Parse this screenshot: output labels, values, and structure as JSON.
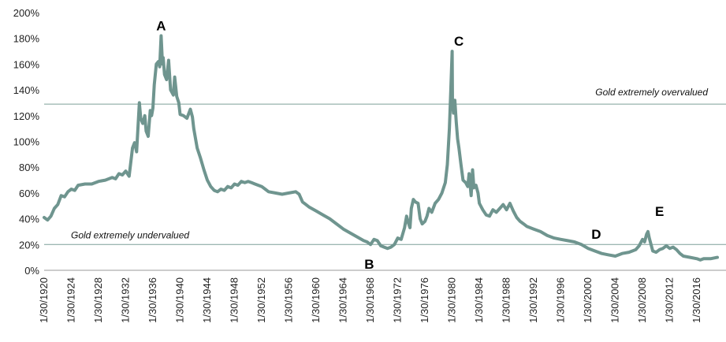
{
  "chart_data": {
    "type": "line",
    "title": "",
    "xlabel": "",
    "ylabel": "",
    "ylim": [
      0,
      200
    ],
    "y_unit": "%",
    "grid": false,
    "line_color": "#6f958f",
    "reference_color": "#7d9f99",
    "y_ticks": [
      "0%",
      "20%",
      "40%",
      "60%",
      "80%",
      "100%",
      "120%",
      "140%",
      "160%",
      "180%",
      "200%"
    ],
    "x_ticks": [
      "1/30/1920",
      "1/30/1924",
      "1/30/1928",
      "1/30/1932",
      "1/30/1936",
      "1/30/1940",
      "1/30/1944",
      "1/30/1948",
      "1/30/1952",
      "1/30/1956",
      "1/30/1960",
      "1/30/1964",
      "1/30/1968",
      "1/30/1972",
      "1/30/1976",
      "1/30/1980",
      "1/30/1984",
      "1/30/1988",
      "1/30/1992",
      "1/30/1996",
      "1/30/2000",
      "1/30/2004",
      "1/30/2008",
      "1/30/2012",
      "1/30/2016"
    ],
    "x_range": [
      1920,
      2019
    ],
    "reference_lines": [
      {
        "value": 129,
        "label": "Gold extremely overvalued"
      },
      {
        "value": 20,
        "label": "Gold extremely undervalued"
      }
    ],
    "point_labels": [
      {
        "text": "A",
        "x": 1937.2,
        "y": 190
      },
      {
        "text": "B",
        "x": 1967.8,
        "y": 5
      },
      {
        "text": "C",
        "x": 1981.0,
        "y": 178
      },
      {
        "text": "D",
        "x": 2001.2,
        "y": 28
      },
      {
        "text": "E",
        "x": 2010.5,
        "y": 46
      }
    ],
    "series": [
      {
        "x": [
          1920.0,
          1920.5,
          1921.0,
          1921.5,
          1922.0,
          1922.5,
          1923.0,
          1923.5,
          1924.0,
          1924.5,
          1925.0,
          1926.0,
          1927.0,
          1928.0,
          1929.0,
          1930.0,
          1930.5,
          1931.0,
          1931.5,
          1932.0,
          1932.5,
          1933.0,
          1933.3,
          1933.6,
          1934.0,
          1934.2,
          1934.5,
          1934.8,
          1935.0,
          1935.3,
          1935.6,
          1935.8,
          1936.0,
          1936.2,
          1936.5,
          1936.8,
          1937.0,
          1937.2,
          1937.4,
          1937.5,
          1937.7,
          1938.0,
          1938.3,
          1938.6,
          1939.0,
          1939.2,
          1939.5,
          1939.8,
          1940.0,
          1940.5,
          1941.0,
          1941.5,
          1941.8,
          1942.0,
          1942.5,
          1943.0,
          1943.5,
          1944.0,
          1944.5,
          1945.0,
          1945.5,
          1946.0,
          1946.5,
          1947.0,
          1947.5,
          1948.0,
          1948.5,
          1949.0,
          1949.5,
          1950.0,
          1950.5,
          1951.0,
          1951.5,
          1952.0,
          1952.5,
          1953.0,
          1954.0,
          1955.0,
          1956.0,
          1957.0,
          1957.5,
          1958.0,
          1958.5,
          1959.0,
          1960.0,
          1961.0,
          1962.0,
          1963.0,
          1964.0,
          1965.0,
          1966.0,
          1967.0,
          1967.5,
          1968.0,
          1968.5,
          1969.0,
          1969.5,
          1970.0,
          1970.5,
          1971.0,
          1971.5,
          1972.0,
          1972.5,
          1973.0,
          1973.3,
          1973.5,
          1973.8,
          1974.0,
          1974.3,
          1974.6,
          1975.0,
          1975.3,
          1975.6,
          1976.0,
          1976.3,
          1976.6,
          1977.0,
          1977.5,
          1978.0,
          1978.5,
          1979.0,
          1979.3,
          1979.6,
          1979.8,
          1980.0,
          1980.05,
          1980.2,
          1980.4,
          1980.6,
          1980.8,
          1981.0,
          1981.3,
          1981.6,
          1982.0,
          1982.3,
          1982.5,
          1982.8,
          1983.0,
          1983.2,
          1983.5,
          1983.8,
          1984.0,
          1984.5,
          1985.0,
          1985.5,
          1986.0,
          1986.5,
          1987.0,
          1987.5,
          1988.0,
          1988.5,
          1989.0,
          1989.5,
          1990.0,
          1990.5,
          1991.0,
          1992.0,
          1993.0,
          1994.0,
          1995.0,
          1996.0,
          1997.0,
          1998.0,
          1999.0,
          2000.0,
          2001.0,
          2002.0,
          2003.0,
          2004.0,
          2005.0,
          2006.0,
          2006.5,
          2007.0,
          2007.5,
          2008.0,
          2008.3,
          2008.6,
          2008.8,
          2009.0,
          2009.5,
          2010.0,
          2010.5,
          2011.0,
          2011.5,
          2012.0,
          2012.5,
          2013.0,
          2013.5,
          2014.0,
          2015.0,
          2016.0,
          2016.5,
          2017.0,
          2018.0,
          2019.0
        ],
        "values": [
          41,
          39,
          42,
          48,
          51,
          58,
          57,
          61,
          63,
          62,
          66,
          67,
          67,
          69,
          70,
          72,
          71,
          75,
          74,
          77,
          73,
          95,
          99,
          92,
          130,
          118,
          114,
          120,
          108,
          104,
          124,
          120,
          126,
          144,
          160,
          162,
          158,
          182,
          160,
          165,
          152,
          148,
          163,
          140,
          136,
          150,
          135,
          130,
          121,
          120,
          118,
          125,
          119,
          110,
          95,
          87,
          78,
          70,
          65,
          62,
          61,
          63,
          62,
          65,
          64,
          67,
          66,
          69,
          68,
          69,
          68,
          67,
          66,
          65,
          63,
          61,
          60,
          59,
          60,
          61,
          59,
          53,
          51,
          49,
          46,
          43,
          40,
          36,
          32,
          29,
          26,
          23,
          22,
          20,
          24,
          23,
          19,
          18,
          17,
          18,
          20,
          25,
          24,
          33,
          42,
          38,
          33,
          48,
          55,
          53,
          52,
          40,
          36,
          38,
          42,
          48,
          45,
          52,
          55,
          60,
          68,
          82,
          110,
          140,
          170,
          130,
          122,
          132,
          115,
          102,
          95,
          82,
          70,
          68,
          65,
          75,
          58,
          78,
          64,
          66,
          60,
          52,
          47,
          43,
          42,
          47,
          45,
          48,
          51,
          47,
          52,
          46,
          41,
          38,
          36,
          34,
          32,
          30,
          27,
          25,
          24,
          23,
          22,
          20,
          17,
          15,
          13,
          12,
          11,
          13,
          14,
          15,
          16,
          19,
          24,
          22,
          28,
          30,
          25,
          15,
          14,
          16,
          17,
          19,
          17,
          18,
          16,
          13,
          11,
          10,
          9,
          8,
          9,
          9,
          10
        ]
      }
    ]
  }
}
